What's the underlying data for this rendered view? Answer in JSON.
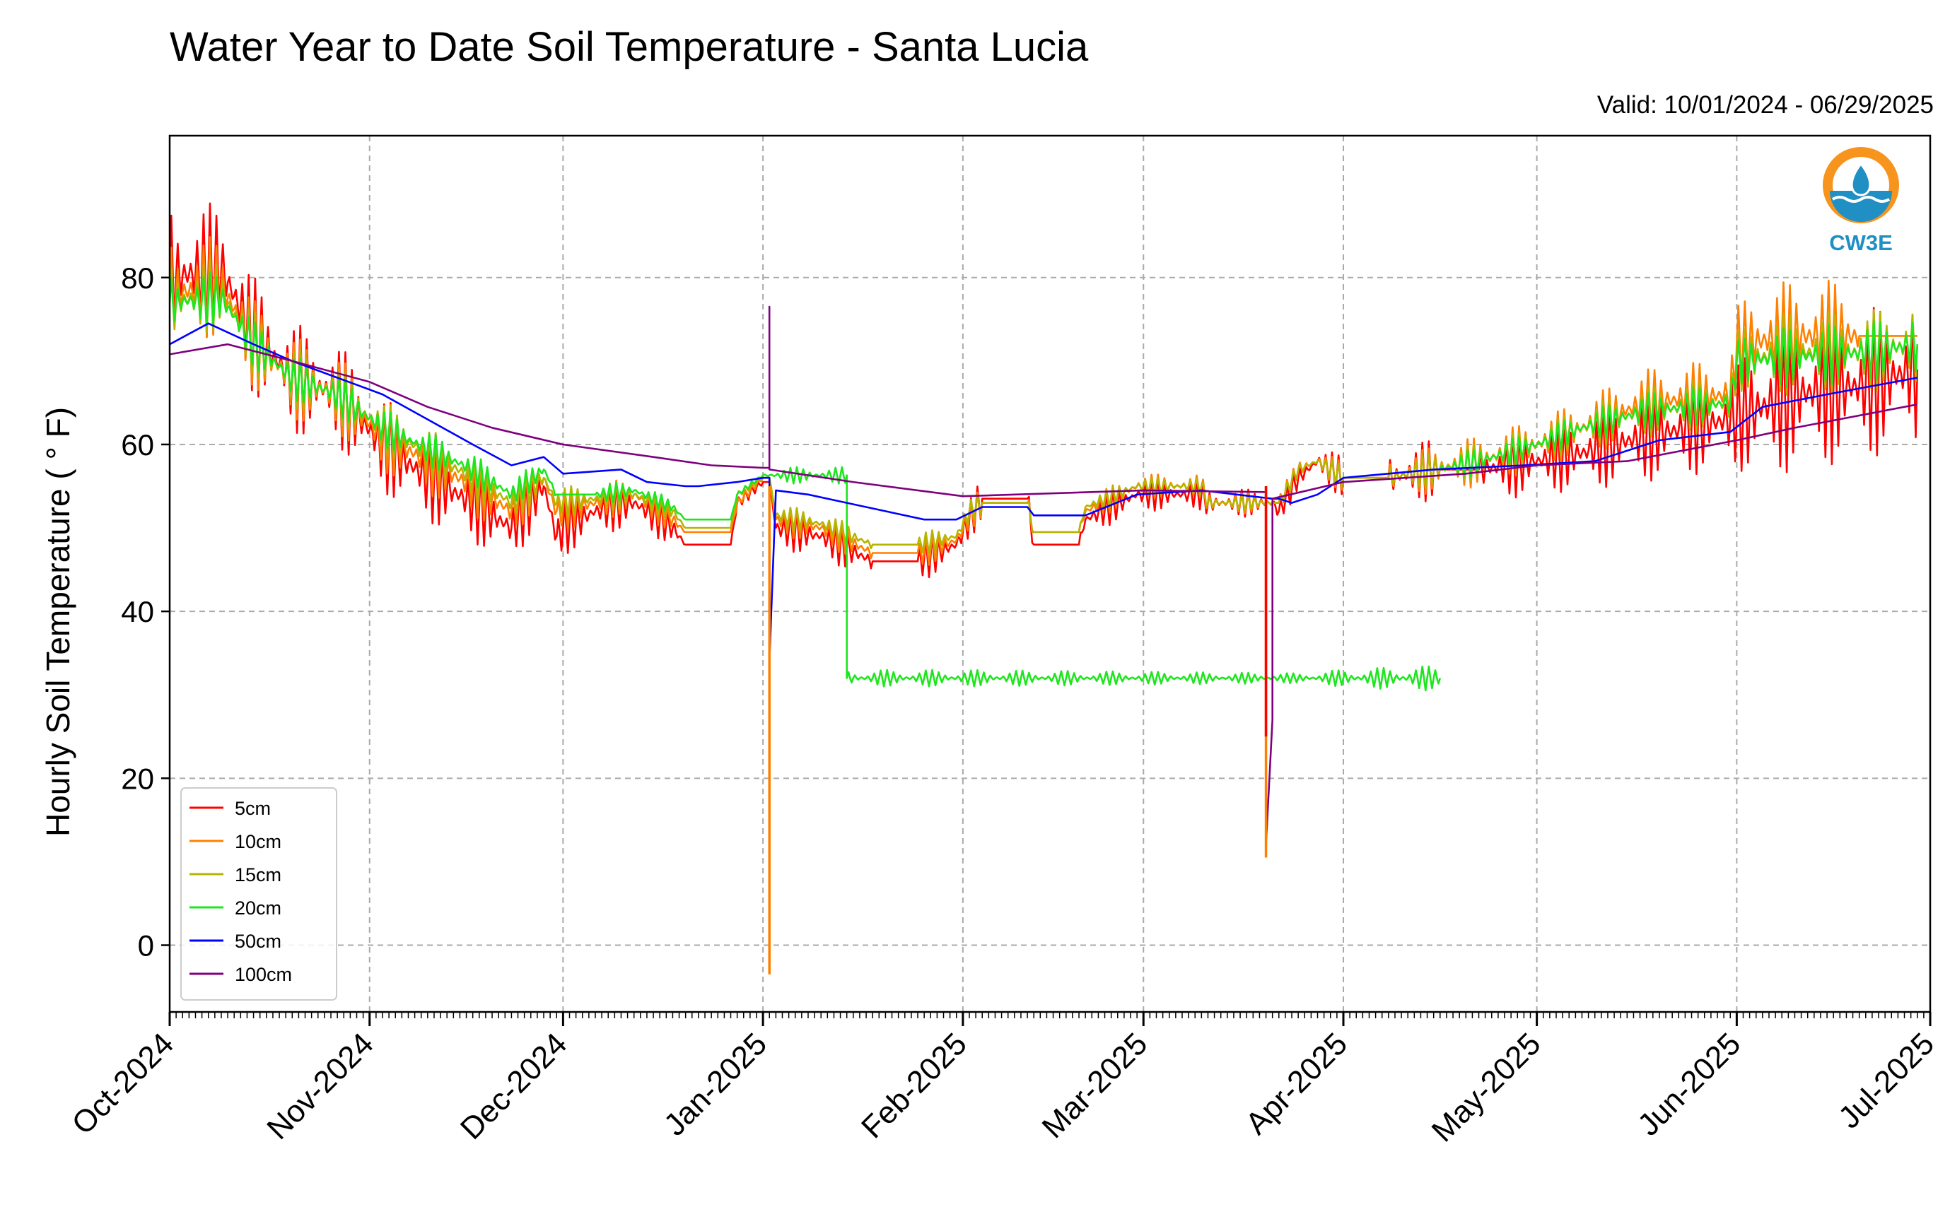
{
  "chart_data": {
    "type": "line",
    "title": "Water Year to Date Soil Temperature - Santa Lucia",
    "subtitle": "Valid: 10/01/2024 - 06/29/2025",
    "xlabel": "",
    "ylabel": "Hourly Soil Temperature ( ° F)",
    "xlim": [
      "2024-10-01",
      "2025-07-01"
    ],
    "ylim": [
      -8,
      97
    ],
    "yticks": [
      0,
      20,
      40,
      60,
      80
    ],
    "xticks": [
      {
        "date": "2024-10-01",
        "label": "Oct-2024"
      },
      {
        "date": "2024-11-01",
        "label": "Nov-2024"
      },
      {
        "date": "2024-12-01",
        "label": "Dec-2024"
      },
      {
        "date": "2025-01-01",
        "label": "Jan-2025"
      },
      {
        "date": "2025-02-01",
        "label": "Feb-2025"
      },
      {
        "date": "2025-03-01",
        "label": "Mar-2025"
      },
      {
        "date": "2025-04-01",
        "label": "Apr-2025"
      },
      {
        "date": "2025-05-01",
        "label": "May-2025"
      },
      {
        "date": "2025-06-01",
        "label": "Jun-2025"
      },
      {
        "date": "2025-07-01",
        "label": "Jul-2025"
      }
    ],
    "grid": true,
    "legend_position": "lower-left",
    "series": [
      {
        "name": "5cm",
        "color": "#ff0000",
        "diurnal_amplitude": true,
        "points": [
          [
            "2024-10-01",
            80
          ],
          [
            "2024-10-09",
            81
          ],
          [
            "2024-10-14",
            73
          ],
          [
            "2024-10-20",
            68
          ],
          [
            "2024-10-27",
            66
          ],
          [
            "2024-11-03",
            60
          ],
          [
            "2024-11-10",
            56
          ],
          [
            "2024-11-17",
            53
          ],
          [
            "2024-11-23",
            50
          ],
          [
            "2024-11-28",
            55
          ],
          [
            "2024-11-30",
            49
          ],
          [
            "2024-12-01",
            50
          ],
          [
            "2024-12-06",
            52
          ],
          [
            "2024-12-12",
            53
          ],
          [
            "2024-12-18",
            50
          ],
          [
            "2024-12-20",
            48
          ],
          [
            "2024-12-27",
            48
          ],
          [
            "2024-12-28",
            53
          ],
          [
            "2025-01-01",
            55.5
          ],
          [
            "2025-01-02",
            55.5
          ],
          [
            "2025-01-03",
            50
          ],
          [
            "2025-01-10",
            49
          ],
          [
            "2025-01-18",
            46
          ],
          [
            "2025-01-25",
            46
          ],
          [
            "2025-01-31",
            48
          ],
          [
            "2025-02-02",
            51
          ],
          [
            "2025-02-04",
            53.5
          ],
          [
            "2025-02-11",
            53.5
          ],
          [
            "2025-02-12",
            48
          ],
          [
            "2025-02-19",
            48
          ],
          [
            "2025-02-20",
            51
          ],
          [
            "2025-02-28",
            54
          ],
          [
            "2025-03-10",
            54
          ],
          [
            "2025-03-11",
            53
          ],
          [
            "2025-03-21",
            53
          ],
          [
            "2025-03-22",
            52
          ],
          [
            "2025-03-25",
            56
          ],
          [
            "2025-03-28",
            58
          ],
          [
            "2025-04-01",
            56
          ],
          [
            "2025-04-08",
            56
          ],
          [
            "2025-04-15",
            57
          ],
          [
            "2025-04-22",
            57
          ],
          [
            "2025-05-01",
            58
          ],
          [
            "2025-05-08",
            59
          ],
          [
            "2025-05-18",
            61
          ],
          [
            "2025-05-31",
            63
          ],
          [
            "2025-06-10",
            66
          ],
          [
            "2025-06-20",
            67
          ],
          [
            "2025-06-29",
            69
          ]
        ]
      },
      {
        "name": "10cm",
        "color": "#ff8000",
        "diurnal_amplitude": true,
        "points": [
          [
            "2024-10-01",
            78
          ],
          [
            "2024-10-09",
            79
          ],
          [
            "2024-10-14",
            72
          ],
          [
            "2024-10-20",
            68
          ],
          [
            "2024-10-27",
            66
          ],
          [
            "2024-11-03",
            61
          ],
          [
            "2024-11-10",
            58
          ],
          [
            "2024-11-17",
            55
          ],
          [
            "2024-11-23",
            52
          ],
          [
            "2024-11-28",
            56
          ],
          [
            "2024-11-30",
            52
          ],
          [
            "2024-12-06",
            53
          ],
          [
            "2024-12-12",
            54
          ],
          [
            "2024-12-18",
            51
          ],
          [
            "2024-12-20",
            49.5
          ],
          [
            "2024-12-27",
            49.5
          ],
          [
            "2024-12-28",
            53
          ],
          [
            "2025-01-01",
            56
          ],
          [
            "2025-01-02",
            56
          ],
          [
            "2025-01-03",
            51
          ],
          [
            "2025-01-10",
            50
          ],
          [
            "2025-01-18",
            47
          ],
          [
            "2025-01-25",
            47
          ],
          [
            "2025-01-31",
            48.5
          ],
          [
            "2025-02-02",
            51.5
          ],
          [
            "2025-02-04",
            53
          ],
          [
            "2025-02-11",
            53
          ],
          [
            "2025-02-12",
            49.5
          ],
          [
            "2025-02-19",
            49.5
          ],
          [
            "2025-02-20",
            52
          ],
          [
            "2025-02-28",
            55
          ],
          [
            "2025-03-10",
            55
          ],
          [
            "2025-03-11",
            53
          ],
          [
            "2025-03-21",
            53
          ],
          [
            "2025-03-22",
            53
          ],
          [
            "2025-03-25",
            57
          ],
          [
            "2025-03-28",
            58
          ],
          [
            "2025-04-01",
            56
          ],
          [
            "2025-04-08",
            56
          ],
          [
            "2025-04-15",
            57
          ],
          [
            "2025-04-22",
            58
          ],
          [
            "2025-05-01",
            60
          ],
          [
            "2025-05-08",
            62
          ],
          [
            "2025-05-18",
            65
          ],
          [
            "2025-05-31",
            66
          ],
          [
            "2025-06-01",
            72
          ],
          [
            "2025-06-10",
            73
          ],
          [
            "2025-06-20",
            73
          ],
          [
            "2025-06-29",
            73
          ]
        ]
      },
      {
        "name": "15cm",
        "color": "#b5b500",
        "diurnal_amplitude": true,
        "points": [
          [
            "2024-10-01",
            77
          ],
          [
            "2024-10-09",
            78
          ],
          [
            "2024-10-14",
            72
          ],
          [
            "2024-10-20",
            68
          ],
          [
            "2024-10-27",
            66
          ],
          [
            "2024-11-03",
            62
          ],
          [
            "2024-11-10",
            59
          ],
          [
            "2024-11-17",
            56
          ],
          [
            "2024-11-23",
            53
          ],
          [
            "2024-11-28",
            56
          ],
          [
            "2024-11-30",
            53
          ],
          [
            "2024-12-06",
            53.5
          ],
          [
            "2024-12-12",
            54
          ],
          [
            "2024-12-18",
            52
          ],
          [
            "2024-12-20",
            50
          ],
          [
            "2024-12-27",
            50
          ],
          [
            "2024-12-28",
            54
          ],
          [
            "2025-01-01",
            56
          ],
          [
            "2025-01-02",
            56
          ],
          [
            "2025-01-03",
            51.5
          ],
          [
            "2025-01-10",
            50.5
          ],
          [
            "2025-01-18",
            48
          ],
          [
            "2025-01-25",
            48
          ],
          [
            "2025-01-31",
            49
          ],
          [
            "2025-02-02",
            52
          ],
          [
            "2025-02-04",
            53
          ],
          [
            "2025-02-11",
            53
          ],
          [
            "2025-02-12",
            49.5
          ],
          [
            "2025-02-19",
            49.5
          ],
          [
            "2025-02-20",
            52.5
          ],
          [
            "2025-02-28",
            55
          ],
          [
            "2025-03-10",
            55
          ],
          [
            "2025-03-11",
            53
          ],
          [
            "2025-03-21",
            53
          ],
          [
            "2025-03-22",
            53
          ],
          [
            "2025-03-25",
            57
          ],
          [
            "2025-03-28",
            58
          ],
          [
            "2025-04-01",
            56
          ],
          [
            "2025-04-08",
            56
          ],
          [
            "2025-04-15",
            57
          ],
          [
            "2025-04-22",
            58
          ],
          [
            "2025-05-01",
            60
          ],
          [
            "2025-05-08",
            62
          ],
          [
            "2025-05-18",
            64
          ],
          [
            "2025-05-31",
            65
          ],
          [
            "2025-06-01",
            70
          ],
          [
            "2025-06-10",
            71
          ],
          [
            "2025-06-20",
            71
          ],
          [
            "2025-06-29",
            72
          ]
        ]
      },
      {
        "name": "20cm",
        "color": "#1ee61e",
        "diurnal_amplitude": true,
        "points": [
          [
            "2024-10-01",
            77
          ],
          [
            "2024-10-09",
            77.5
          ],
          [
            "2024-10-14",
            72
          ],
          [
            "2024-10-20",
            68
          ],
          [
            "2024-10-27",
            66
          ],
          [
            "2024-11-03",
            62
          ],
          [
            "2024-11-10",
            59.5
          ],
          [
            "2024-11-17",
            57
          ],
          [
            "2024-11-23",
            54
          ],
          [
            "2024-11-28",
            57
          ],
          [
            "2024-11-30",
            54
          ],
          [
            "2024-12-06",
            54
          ],
          [
            "2024-12-12",
            54.5
          ],
          [
            "2024-12-18",
            52.5
          ],
          [
            "2024-12-20",
            51
          ],
          [
            "2024-12-27",
            51
          ],
          [
            "2024-12-28",
            54
          ],
          [
            "2025-01-01",
            56.3
          ],
          [
            "2025-01-14",
            56.3
          ],
          [
            "2025-01-14",
            32
          ],
          [
            "2025-04-16",
            32
          ]
        ]
      },
      {
        "name": "20cm",
        "color": "#1ee61e",
        "diurnal_amplitude": true,
        "legend": false,
        "points": [
          [
            "2025-04-16",
            57
          ],
          [
            "2025-04-22",
            58
          ],
          [
            "2025-05-01",
            60
          ],
          [
            "2025-05-08",
            62
          ],
          [
            "2025-05-18",
            64
          ],
          [
            "2025-05-31",
            65
          ],
          [
            "2025-06-01",
            70
          ],
          [
            "2025-06-10",
            70.5
          ],
          [
            "2025-06-20",
            71
          ],
          [
            "2025-06-29",
            72
          ]
        ]
      },
      {
        "name": "50cm",
        "color": "#0000ff",
        "diurnal_amplitude": false,
        "points": [
          [
            "2024-10-01",
            72
          ],
          [
            "2024-10-07",
            74.5
          ],
          [
            "2024-10-14",
            72
          ],
          [
            "2024-10-20",
            70
          ],
          [
            "2024-10-27",
            68
          ],
          [
            "2024-11-03",
            66
          ],
          [
            "2024-11-10",
            63
          ],
          [
            "2024-11-17",
            60
          ],
          [
            "2024-11-23",
            57.5
          ],
          [
            "2024-11-28",
            58.5
          ],
          [
            "2024-12-01",
            56.5
          ],
          [
            "2024-12-10",
            57
          ],
          [
            "2024-12-14",
            55.5
          ],
          [
            "2024-12-20",
            55
          ],
          [
            "2024-12-22",
            55
          ],
          [
            "2024-12-28",
            55.5
          ],
          [
            "2025-01-01",
            56
          ],
          [
            "2025-01-02",
            56
          ],
          [
            "2025-01-02",
            34
          ],
          [
            "2025-01-03",
            54.5
          ],
          [
            "2025-01-08",
            54
          ],
          [
            "2025-01-14",
            53
          ],
          [
            "2025-01-20",
            52
          ],
          [
            "2025-01-26",
            51
          ],
          [
            "2025-01-31",
            51
          ],
          [
            "2025-02-04",
            52.5
          ],
          [
            "2025-02-11",
            52.5
          ],
          [
            "2025-02-12",
            51.5
          ],
          [
            "2025-02-20",
            51.5
          ],
          [
            "2025-02-28",
            54
          ],
          [
            "2025-03-10",
            54.5
          ],
          [
            "2025-03-21",
            53.5
          ],
          [
            "2025-03-22",
            53.5
          ],
          [
            "2025-03-24",
            53
          ],
          [
            "2025-03-28",
            54
          ],
          [
            "2025-04-01",
            56
          ],
          [
            "2025-04-15",
            57
          ],
          [
            "2025-04-29",
            57.5
          ],
          [
            "2025-05-10",
            58
          ],
          [
            "2025-05-20",
            60.5
          ],
          [
            "2025-05-31",
            61.5
          ],
          [
            "2025-06-05",
            64.5
          ],
          [
            "2025-06-15",
            66
          ],
          [
            "2025-06-29",
            68
          ]
        ]
      },
      {
        "name": "100cm",
        "color": "#7f007f",
        "diurnal_amplitude": false,
        "points": [
          [
            "2024-10-01",
            70.8
          ],
          [
            "2024-10-10",
            72
          ],
          [
            "2024-10-20",
            70
          ],
          [
            "2024-11-01",
            67.5
          ],
          [
            "2024-11-10",
            64.5
          ],
          [
            "2024-11-20",
            62
          ],
          [
            "2024-12-01",
            60
          ],
          [
            "2024-12-15",
            58.5
          ],
          [
            "2024-12-24",
            57.5
          ],
          [
            "2025-01-01",
            57.2
          ],
          [
            "2025-01-02",
            57.2
          ],
          [
            "2025-01-02",
            76.5
          ],
          [
            "2025-01-02",
            57
          ],
          [
            "2025-01-15",
            55.5
          ],
          [
            "2025-02-01",
            53.8
          ],
          [
            "2025-03-01",
            54.5
          ],
          [
            "2025-03-20",
            54.3
          ],
          [
            "2025-03-20",
            12
          ],
          [
            "2025-03-21",
            27
          ],
          [
            "2025-03-21",
            53.5
          ],
          [
            "2025-04-01",
            55.5
          ],
          [
            "2025-04-20",
            56.5
          ],
          [
            "2025-05-01",
            57.5
          ],
          [
            "2025-05-15",
            58
          ],
          [
            "2025-06-01",
            60.5
          ],
          [
            "2025-06-10",
            62
          ],
          [
            "2025-06-29",
            64.8
          ]
        ]
      }
    ],
    "spikes": [
      {
        "series": "10cm",
        "date": "2025-01-02",
        "value": -3.5
      },
      {
        "series": "10cm",
        "date": "2025-03-20",
        "value": 10.5
      },
      {
        "series": "5cm",
        "date": "2025-03-20",
        "value": 25
      }
    ]
  },
  "logo": {
    "text": "CW3E",
    "ring_color": "#f7941d",
    "water_color": "#1f8fc4"
  }
}
